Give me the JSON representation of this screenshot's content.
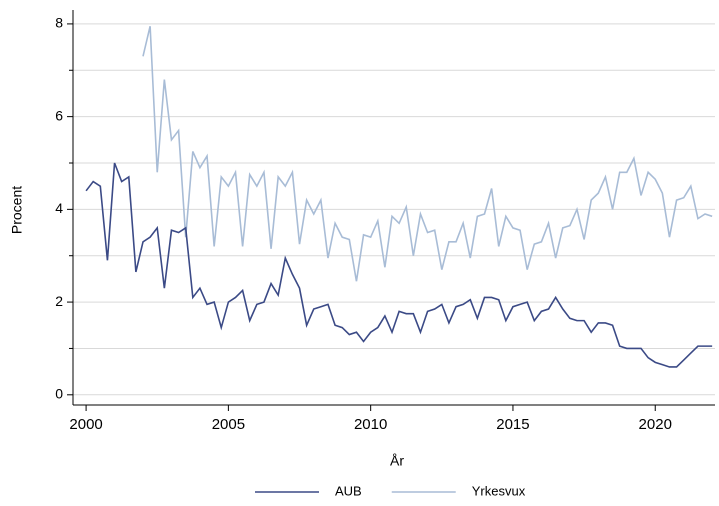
{
  "chart_data": {
    "type": "line",
    "xlabel": "År",
    "ylabel": "Procent",
    "xlim": [
      1999.54,
      2022.1
    ],
    "ylim": [
      -0.22,
      8.3
    ],
    "xticks": [
      2000,
      2005,
      2010,
      2015,
      2020
    ],
    "yticks": [
      0,
      2,
      4,
      6,
      8
    ],
    "yminor_ticks": [
      1,
      3,
      5,
      7
    ],
    "grid": true,
    "legend": "bottom",
    "series": [
      {
        "name": "AUB",
        "color": "#3b4a86",
        "x": [
          2000,
          2000.25,
          2000.5,
          2000.75,
          2001,
          2001.25,
          2001.5,
          2001.75,
          2002,
          2002.25,
          2002.5,
          2002.75,
          2003,
          2003.25,
          2003.5,
          2003.75,
          2004,
          2004.25,
          2004.5,
          2004.75,
          2005,
          2005.25,
          2005.5,
          2005.75,
          2006,
          2006.25,
          2006.5,
          2006.75,
          2007,
          2007.25,
          2007.5,
          2007.75,
          2008,
          2008.25,
          2008.5,
          2008.75,
          2009,
          2009.25,
          2009.5,
          2009.75,
          2010,
          2010.25,
          2010.5,
          2010.75,
          2011,
          2011.25,
          2011.5,
          2011.75,
          2012,
          2012.25,
          2012.5,
          2012.75,
          2013,
          2013.25,
          2013.5,
          2013.75,
          2014,
          2014.25,
          2014.5,
          2014.75,
          2015,
          2015.25,
          2015.5,
          2015.75,
          2016,
          2016.25,
          2016.5,
          2016.75,
          2017,
          2017.25,
          2017.5,
          2017.75,
          2018,
          2018.25,
          2018.5,
          2018.75,
          2019,
          2019.25,
          2019.5,
          2019.75,
          2020,
          2020.25,
          2020.5,
          2020.75,
          2021,
          2021.25,
          2021.5,
          2021.75,
          2022
        ],
        "values": [
          4.4,
          4.6,
          4.5,
          2.9,
          5.0,
          4.6,
          4.7,
          2.65,
          3.3,
          3.4,
          3.6,
          2.3,
          3.55,
          3.5,
          3.6,
          2.1,
          2.3,
          1.95,
          2.0,
          1.45,
          2.0,
          2.1,
          2.25,
          1.6,
          1.95,
          2.0,
          2.4,
          2.15,
          2.95,
          2.6,
          2.3,
          1.5,
          1.85,
          1.9,
          1.95,
          1.5,
          1.45,
          1.3,
          1.35,
          1.15,
          1.35,
          1.45,
          1.7,
          1.35,
          1.8,
          1.75,
          1.75,
          1.35,
          1.8,
          1.85,
          1.95,
          1.55,
          1.9,
          1.95,
          2.05,
          1.65,
          2.1,
          2.1,
          2.05,
          1.6,
          1.9,
          1.95,
          2.0,
          1.6,
          1.8,
          1.85,
          2.1,
          1.85,
          1.65,
          1.6,
          1.6,
          1.35,
          1.55,
          1.55,
          1.5,
          1.05,
          1.0,
          1.0,
          1.0,
          0.8,
          0.7,
          0.65,
          0.6,
          0.6,
          0.75,
          0.9,
          1.05,
          1.05,
          1.05
        ]
      },
      {
        "name": "Yrkesvux",
        "color": "#a8bcd6",
        "x": [
          2002,
          2002.25,
          2002.5,
          2002.75,
          2003,
          2003.25,
          2003.5,
          2003.75,
          2004,
          2004.25,
          2004.5,
          2004.75,
          2005,
          2005.25,
          2005.5,
          2005.75,
          2006,
          2006.25,
          2006.5,
          2006.75,
          2007,
          2007.25,
          2007.5,
          2007.75,
          2008,
          2008.25,
          2008.5,
          2008.75,
          2009,
          2009.25,
          2009.5,
          2009.75,
          2010,
          2010.25,
          2010.5,
          2010.75,
          2011,
          2011.25,
          2011.5,
          2011.75,
          2012,
          2012.25,
          2012.5,
          2012.75,
          2013,
          2013.25,
          2013.5,
          2013.75,
          2014,
          2014.25,
          2014.5,
          2014.75,
          2015,
          2015.25,
          2015.5,
          2015.75,
          2016,
          2016.25,
          2016.5,
          2016.75,
          2017,
          2017.25,
          2017.5,
          2017.75,
          2018,
          2018.25,
          2018.5,
          2018.75,
          2019,
          2019.25,
          2019.5,
          2019.75,
          2020,
          2020.25,
          2020.5,
          2020.75,
          2021,
          2021.25,
          2021.5,
          2021.75,
          2022
        ],
        "values": [
          7.3,
          7.95,
          4.8,
          6.8,
          5.5,
          5.7,
          3.4,
          5.25,
          4.9,
          5.15,
          3.2,
          4.7,
          4.5,
          4.8,
          3.2,
          4.75,
          4.5,
          4.8,
          3.15,
          4.7,
          4.5,
          4.8,
          3.25,
          4.2,
          3.9,
          4.2,
          2.95,
          3.7,
          3.4,
          3.35,
          2.45,
          3.45,
          3.4,
          3.75,
          2.75,
          3.85,
          3.7,
          4.05,
          3.0,
          3.9,
          3.5,
          3.55,
          2.7,
          3.3,
          3.3,
          3.7,
          2.95,
          3.85,
          3.9,
          4.45,
          3.2,
          3.85,
          3.6,
          3.55,
          2.7,
          3.25,
          3.3,
          3.7,
          2.95,
          3.6,
          3.65,
          4.0,
          3.35,
          4.2,
          4.35,
          4.7,
          4.0,
          4.8,
          4.8,
          5.1,
          4.3,
          4.8,
          4.65,
          4.35,
          3.4,
          4.2,
          4.25,
          4.5,
          3.8,
          3.9,
          3.85
        ]
      }
    ]
  }
}
